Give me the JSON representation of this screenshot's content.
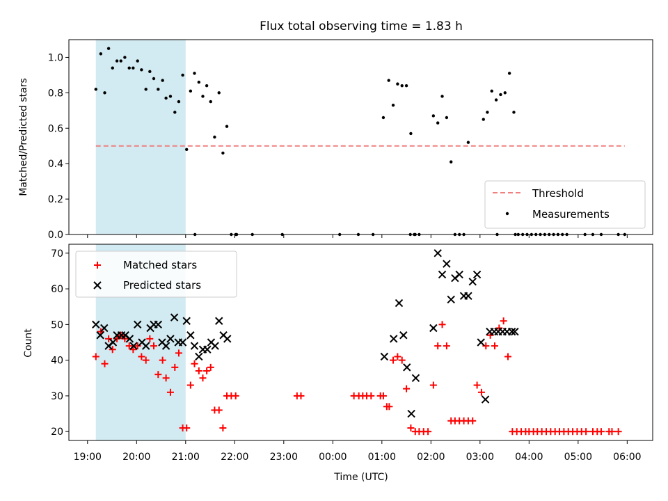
{
  "chart_data": {
    "type": "scatter",
    "title": "Flux total observing time = 1.83 h",
    "xlabel": "Time (UTC)",
    "x_tick_labels": [
      "19:00",
      "20:00",
      "21:00",
      "22:00",
      "23:00",
      "00:00",
      "01:00",
      "02:00",
      "03:00",
      "04:00",
      "05:00",
      "06:00"
    ],
    "x_unit": "hours since 19:00 UTC",
    "xlim": [
      -0.38,
      11.52
    ],
    "highlight_span": [
      0.17,
      2.0
    ],
    "colors": {
      "highlight": "#add8e6",
      "threshold": "#f08080",
      "measurements": "#000000",
      "matched": "#ff0000",
      "predicted": "#000000"
    },
    "panels": [
      {
        "ylabel": "Matched/Predicted stars",
        "ylim": [
          0,
          1.1
        ],
        "yticks": [
          "0.0",
          "0.2",
          "0.4",
          "0.6",
          "0.8",
          "1.0"
        ],
        "legend": {
          "placement": "lower right",
          "entries": [
            "Threshold",
            "Measurements"
          ]
        },
        "threshold": {
          "name": "Threshold",
          "y": 0.5,
          "x_range": [
            0.17,
            10.95
          ]
        },
        "series": [
          {
            "name": "Measurements",
            "marker": "dot",
            "x": [
              0.17,
              0.27,
              0.35,
              0.43,
              0.51,
              0.6,
              0.68,
              0.76,
              0.85,
              0.93,
              1.02,
              1.1,
              1.19,
              1.27,
              1.35,
              1.44,
              1.53,
              1.6,
              1.69,
              1.78,
              1.86,
              1.94,
              2.02,
              2.1,
              2.18,
              2.27,
              2.35,
              2.43,
              2.51,
              2.59,
              2.68,
              2.76,
              2.84,
              2.93,
              3.02,
              6.03,
              6.14,
              6.23,
              6.32,
              6.41,
              6.5,
              6.59,
              6.68,
              7.05,
              7.14,
              7.23,
              7.32,
              7.41,
              7.49,
              7.58,
              7.67,
              7.76,
              8.07,
              8.15,
              8.24,
              8.33,
              8.42,
              8.51,
              8.6,
              8.69,
              8.78,
              8.87,
              8.96,
              9.05,
              9.14,
              9.23,
              9.32,
              9.41,
              9.5,
              9.59,
              9.68,
              9.77,
              2.19,
              3.04,
              3.36,
              3.97,
              5.14,
              5.52,
              5.82,
              6.58,
              6.66,
              6.76,
              8.35,
              8.72,
              10.14,
              10.3,
              10.47,
              10.82,
              10.95
            ],
            "y": [
              0.82,
              1.02,
              0.8,
              1.05,
              0.94,
              0.98,
              0.98,
              1.0,
              0.94,
              0.94,
              0.98,
              0.93,
              0.82,
              0.92,
              0.88,
              0.82,
              0.87,
              0.77,
              0.78,
              0.69,
              0.75,
              0.9,
              0.48,
              0.81,
              0.91,
              0.86,
              0.78,
              0.84,
              0.75,
              0.55,
              0.8,
              0.46,
              0.61,
              0.0,
              0.0,
              0.66,
              0.87,
              0.73,
              0.85,
              0.84,
              0.84,
              0.57,
              0.0,
              0.67,
              0.63,
              0.78,
              0.66,
              0.41,
              0.0,
              0.0,
              0.0,
              0.52,
              0.65,
              0.69,
              0.81,
              0.76,
              0.79,
              0.8,
              0.91,
              0.69,
              0.0,
              0.0,
              0.0,
              0.0,
              0.0,
              0.0,
              0.0,
              0.0,
              0.0,
              0.0,
              0.0,
              0.0,
              0.0,
              0.0,
              0.0,
              0.0,
              0.0,
              0.0,
              0.0,
              0.0,
              0.0,
              0.0,
              0.0,
              0.0,
              0.0,
              0.0,
              0.0,
              0.0,
              0.0
            ]
          }
        ]
      },
      {
        "ylabel": "Count",
        "ylim": [
          17.5,
          72.5
        ],
        "yticks": [
          "20",
          "30",
          "40",
          "50",
          "60",
          "70"
        ],
        "legend": {
          "placement": "upper left",
          "entries": [
            "Matched stars",
            "Predicted stars"
          ]
        },
        "series": [
          {
            "name": "Matched stars",
            "marker": "plus",
            "x": [
              0.17,
              0.27,
              0.35,
              0.43,
              0.51,
              0.6,
              0.68,
              0.76,
              0.85,
              0.93,
              1.02,
              1.1,
              1.19,
              1.27,
              1.35,
              1.44,
              1.53,
              1.6,
              1.69,
              1.78,
              1.86,
              1.94,
              2.02,
              2.1,
              2.18,
              2.27,
              2.35,
              2.43,
              2.51,
              2.59,
              2.68,
              2.76,
              2.84,
              2.93,
              3.02,
              4.27,
              4.35,
              5.43,
              5.53,
              5.61,
              5.69,
              5.78,
              5.97,
              6.03,
              6.1,
              6.15,
              6.23,
              6.32,
              6.41,
              6.5,
              6.59,
              6.68,
              6.76,
              6.85,
              6.94,
              7.05,
              7.14,
              7.23,
              7.32,
              7.41,
              7.49,
              7.58,
              7.67,
              7.76,
              7.85,
              7.94,
              8.03,
              8.12,
              8.21,
              8.3,
              8.39,
              8.48,
              8.57,
              8.66,
              8.75,
              8.84,
              8.93,
              9.0,
              9.09,
              9.17,
              9.26,
              9.35,
              9.44,
              9.53,
              9.62,
              9.71,
              9.8,
              9.89,
              9.98,
              10.07,
              10.16,
              10.3,
              10.39,
              10.47,
              10.63,
              10.69,
              10.82
            ],
            "y": [
              41,
              48,
              39,
              46,
              43,
              46,
              47,
              46,
              44,
              43,
              44,
              41,
              40,
              46,
              44,
              36,
              40,
              35,
              31,
              38,
              42,
              21,
              21,
              33,
              39,
              37,
              35,
              37,
              38,
              26,
              26,
              21,
              30,
              30,
              30,
              30,
              30,
              30,
              30,
              30,
              30,
              30,
              30,
              30,
              27,
              27,
              40,
              41,
              40,
              32,
              21,
              20,
              20,
              20,
              20,
              33,
              44,
              50,
              44,
              23,
              23,
              23,
              23,
              23,
              23,
              33,
              31,
              44,
              47,
              44,
              49,
              51,
              41,
              20,
              20,
              20,
              20,
              20,
              20,
              20,
              20,
              20,
              20,
              20,
              20,
              20,
              20,
              20,
              20,
              20,
              20,
              20,
              20,
              20,
              20,
              20,
              20
            ]
          },
          {
            "name": "Predicted stars",
            "marker": "x",
            "x": [
              0.17,
              0.26,
              0.34,
              0.43,
              0.52,
              0.6,
              0.69,
              0.77,
              0.86,
              0.94,
              1.02,
              1.11,
              1.19,
              1.28,
              1.35,
              1.44,
              1.52,
              1.6,
              1.69,
              1.77,
              1.85,
              1.94,
              2.02,
              2.1,
              2.18,
              2.27,
              2.35,
              2.44,
              2.52,
              2.6,
              2.68,
              2.77,
              2.85,
              6.05,
              6.24,
              6.35,
              6.44,
              6.51,
              6.6,
              6.69,
              7.05,
              7.14,
              7.23,
              7.32,
              7.41,
              7.49,
              7.58,
              7.67,
              7.76,
              7.85,
              7.94,
              8.02,
              8.11,
              8.2,
              8.29,
              8.37,
              8.46,
              8.55,
              8.65,
              8.71
            ],
            "y": [
              50,
              47,
              49,
              44,
              45,
              47,
              47,
              47,
              46,
              44,
              50,
              45,
              44,
              49,
              50,
              50,
              45,
              44,
              46,
              52,
              45,
              45,
              51,
              47,
              44,
              41,
              43,
              43,
              45,
              44,
              51,
              47,
              46,
              41,
              46,
              56,
              47,
              38,
              25,
              35,
              49,
              70,
              64,
              67,
              57,
              63,
              64,
              58,
              58,
              62,
              64,
              45,
              29,
              48,
              48,
              48,
              48,
              48,
              48,
              48
            ]
          }
        ]
      }
    ]
  }
}
